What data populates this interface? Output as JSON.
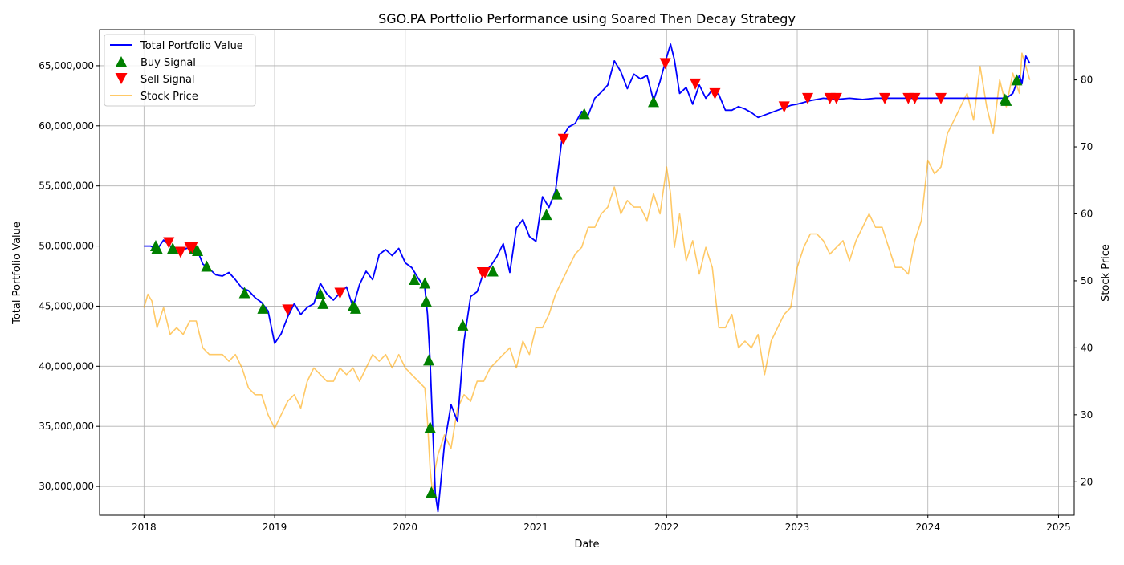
{
  "colors": {
    "portfolio": "#0000ff",
    "stock": "#ffa500",
    "buy": "#008000",
    "sell": "#ff0000",
    "grid": "#b0b0b0"
  },
  "chart_data": {
    "type": "line",
    "title": "SGO.PA Portfolio Performance using Soared Then Decay Strategy",
    "xlabel": "Date",
    "ylabel": "Total Portfolio Value",
    "y2label": "Stock Price",
    "xlim": [
      2017.66,
      2025.12
    ],
    "ylim": [
      27600000,
      68000000
    ],
    "y2lim": [
      15,
      87.5
    ],
    "grid": true,
    "legend_position": "top-left",
    "x_ticks": [
      "2018",
      "2019",
      "2020",
      "2021",
      "2022",
      "2023",
      "2024",
      "2025"
    ],
    "y_ticks": [
      "30,000,000",
      "35,000,000",
      "40,000,000",
      "45,000,000",
      "50,000,000",
      "55,000,000",
      "60,000,000",
      "65,000,000"
    ],
    "y2_ticks": [
      "20",
      "30",
      "40",
      "50",
      "60",
      "70",
      "80"
    ],
    "legend": [
      "Total Portfolio Value",
      "Buy Signal",
      "Sell Signal",
      "Stock Price"
    ],
    "series": [
      {
        "name": "Total Portfolio Value",
        "axis": "left",
        "x": [
          2018.0,
          2018.05,
          2018.1,
          2018.15,
          2018.2,
          2018.25,
          2018.3,
          2018.35,
          2018.4,
          2018.45,
          2018.5,
          2018.55,
          2018.6,
          2018.65,
          2018.7,
          2018.75,
          2018.8,
          2018.85,
          2018.9,
          2018.95,
          2019.0,
          2019.05,
          2019.1,
          2019.15,
          2019.2,
          2019.25,
          2019.3,
          2019.35,
          2019.4,
          2019.45,
          2019.5,
          2019.55,
          2019.6,
          2019.65,
          2019.7,
          2019.75,
          2019.8,
          2019.85,
          2019.9,
          2019.95,
          2020.0,
          2020.05,
          2020.1,
          2020.15,
          2020.17,
          2020.19,
          2020.21,
          2020.23,
          2020.25,
          2020.3,
          2020.35,
          2020.4,
          2020.45,
          2020.5,
          2020.55,
          2020.6,
          2020.65,
          2020.7,
          2020.75,
          2020.8,
          2020.85,
          2020.9,
          2020.95,
          2021.0,
          2021.05,
          2021.1,
          2021.15,
          2021.2,
          2021.25,
          2021.3,
          2021.35,
          2021.4,
          2021.45,
          2021.5,
          2021.55,
          2021.6,
          2021.65,
          2021.7,
          2021.75,
          2021.8,
          2021.85,
          2021.9,
          2021.95,
          2022.0,
          2022.03,
          2022.06,
          2022.1,
          2022.15,
          2022.2,
          2022.25,
          2022.3,
          2022.35,
          2022.4,
          2022.45,
          2022.5,
          2022.55,
          2022.6,
          2022.65,
          2022.7,
          2022.75,
          2022.8,
          2022.85,
          2022.9,
          2022.95,
          2023.0,
          2023.1,
          2023.2,
          2023.3,
          2023.4,
          2023.5,
          2023.6,
          2023.7,
          2023.8,
          2023.9,
          2024.0,
          2024.1,
          2024.2,
          2024.3,
          2024.4,
          2024.5,
          2024.55,
          2024.6,
          2024.65,
          2024.7,
          2024.72,
          2024.75,
          2024.78
        ],
        "values": [
          50000000,
          50000000,
          49700000,
          50500000,
          50000000,
          49800000,
          49700000,
          49900000,
          49900000,
          48500000,
          48100000,
          47600000,
          47500000,
          47800000,
          47200000,
          46500000,
          46300000,
          45700000,
          45300000,
          44600000,
          41900000,
          42700000,
          44100000,
          45200000,
          44300000,
          44900000,
          45200000,
          46900000,
          46000000,
          45500000,
          46100000,
          46600000,
          44900000,
          46800000,
          47900000,
          47200000,
          49300000,
          49700000,
          49200000,
          49800000,
          48600000,
          48200000,
          47300000,
          46500000,
          44300000,
          40500000,
          34800000,
          29400000,
          27900000,
          33500000,
          36800000,
          35400000,
          42100000,
          45800000,
          46200000,
          47800000,
          48300000,
          49100000,
          50200000,
          47800000,
          51500000,
          52200000,
          50800000,
          50400000,
          54100000,
          53200000,
          54600000,
          59000000,
          59900000,
          60200000,
          61200000,
          60900000,
          62300000,
          62800000,
          63400000,
          65400000,
          64500000,
          63100000,
          64300000,
          63900000,
          64200000,
          62100000,
          63700000,
          65700000,
          66800000,
          65500000,
          62700000,
          63200000,
          61800000,
          63400000,
          62300000,
          63000000,
          62600000,
          61300000,
          61300000,
          61600000,
          61400000,
          61100000,
          60700000,
          60900000,
          61100000,
          61300000,
          61500000,
          61700000,
          61800000,
          62100000,
          62300000,
          62200000,
          62300000,
          62200000,
          62300000,
          62300000,
          62300000,
          62300000,
          62300000,
          62300000,
          62300000,
          62300000,
          62300000,
          62300000,
          62300000,
          62300000,
          62700000,
          64200000,
          63500000,
          65800000,
          65200000
        ]
      },
      {
        "name": "Stock Price",
        "axis": "right",
        "x": [
          2018.0,
          2018.03,
          2018.06,
          2018.1,
          2018.15,
          2018.2,
          2018.25,
          2018.3,
          2018.35,
          2018.4,
          2018.45,
          2018.5,
          2018.55,
          2018.6,
          2018.65,
          2018.7,
          2018.75,
          2018.8,
          2018.85,
          2018.9,
          2018.95,
          2019.0,
          2019.05,
          2019.1,
          2019.15,
          2019.2,
          2019.25,
          2019.3,
          2019.35,
          2019.4,
          2019.45,
          2019.5,
          2019.55,
          2019.6,
          2019.65,
          2019.7,
          2019.75,
          2019.8,
          2019.85,
          2019.9,
          2019.95,
          2020.0,
          2020.05,
          2020.1,
          2020.15,
          2020.17,
          2020.19,
          2020.21,
          2020.23,
          2020.25,
          2020.3,
          2020.35,
          2020.4,
          2020.45,
          2020.5,
          2020.55,
          2020.6,
          2020.65,
          2020.7,
          2020.75,
          2020.8,
          2020.85,
          2020.9,
          2020.95,
          2021.0,
          2021.05,
          2021.1,
          2021.15,
          2021.2,
          2021.25,
          2021.3,
          2021.35,
          2021.4,
          2021.45,
          2021.5,
          2021.55,
          2021.6,
          2021.65,
          2021.7,
          2021.75,
          2021.8,
          2021.85,
          2021.9,
          2021.95,
          2022.0,
          2022.03,
          2022.06,
          2022.1,
          2022.15,
          2022.2,
          2022.25,
          2022.3,
          2022.35,
          2022.4,
          2022.45,
          2022.5,
          2022.55,
          2022.6,
          2022.65,
          2022.7,
          2022.75,
          2022.8,
          2022.85,
          2022.9,
          2022.95,
          2023.0,
          2023.05,
          2023.1,
          2023.15,
          2023.2,
          2023.25,
          2023.3,
          2023.35,
          2023.4,
          2023.45,
          2023.5,
          2023.55,
          2023.6,
          2023.65,
          2023.7,
          2023.75,
          2023.8,
          2023.85,
          2023.9,
          2023.95,
          2024.0,
          2024.05,
          2024.1,
          2024.15,
          2024.2,
          2024.25,
          2024.3,
          2024.35,
          2024.4,
          2024.45,
          2024.5,
          2024.55,
          2024.6,
          2024.65,
          2024.7,
          2024.72,
          2024.75,
          2024.78
        ],
        "values": [
          46,
          48,
          47,
          43,
          46,
          42,
          43,
          42,
          44,
          44,
          40,
          39,
          39,
          39,
          38,
          39,
          37,
          34,
          33,
          33,
          30,
          28,
          30,
          32,
          33,
          31,
          35,
          37,
          36,
          35,
          35,
          37,
          36,
          37,
          35,
          37,
          39,
          38,
          39,
          37,
          39,
          37,
          36,
          35,
          34,
          29,
          22,
          18,
          22,
          24,
          27,
          25,
          31,
          33,
          32,
          35,
          35,
          37,
          38,
          39,
          40,
          37,
          41,
          39,
          43,
          43,
          45,
          48,
          50,
          52,
          54,
          55,
          58,
          58,
          60,
          61,
          64,
          60,
          62,
          61,
          61,
          59,
          63,
          60,
          67,
          63,
          55,
          60,
          53,
          56,
          51,
          55,
          52,
          43,
          43,
          45,
          40,
          41,
          40,
          42,
          36,
          41,
          43,
          45,
          46,
          52,
          55,
          57,
          57,
          56,
          54,
          55,
          56,
          53,
          56,
          58,
          60,
          58,
          58,
          55,
          52,
          52,
          51,
          56,
          59,
          68,
          66,
          67,
          72,
          74,
          76,
          78,
          74,
          82,
          76,
          72,
          80,
          76,
          81,
          78,
          84,
          82,
          80
        ]
      }
    ],
    "buy_signals": {
      "name": "Buy Signal",
      "x": [
        2018.09,
        2018.1,
        2018.22,
        2018.39,
        2018.41,
        2018.48,
        2018.77,
        2018.91,
        2019.35,
        2019.37,
        2019.6,
        2019.62,
        2020.07,
        2020.15,
        2020.16,
        2020.18,
        2020.19,
        2020.2,
        2020.44,
        2020.67,
        2021.08,
        2021.16,
        2021.37,
        2021.9,
        2024.59,
        2024.6,
        2024.68
      ],
      "y": [
        50000000,
        49800000,
        49800000,
        49800000,
        49600000,
        48300000,
        46100000,
        44800000,
        46000000,
        45200000,
        45000000,
        44800000,
        47200000,
        46900000,
        45400000,
        40500000,
        34900000,
        29500000,
        43400000,
        47900000,
        52600000,
        54300000,
        61000000,
        62000000,
        62200000,
        62100000,
        63800000
      ]
    },
    "sell_signals": {
      "name": "Sell Signal",
      "x": [
        2018.19,
        2018.28,
        2018.35,
        2018.37,
        2019.1,
        2019.5,
        2020.59,
        2020.61,
        2021.21,
        2021.99,
        2022.22,
        2022.37,
        2022.9,
        2023.08,
        2023.25,
        2023.3,
        2023.67,
        2023.85,
        2023.9,
        2024.1
      ],
      "y": [
        50300000,
        49500000,
        49900000,
        49900000,
        44700000,
        46100000,
        47800000,
        47800000,
        58900000,
        65200000,
        63500000,
        62700000,
        61600000,
        62300000,
        62300000,
        62300000,
        62300000,
        62300000,
        62300000,
        62300000
      ]
    }
  }
}
